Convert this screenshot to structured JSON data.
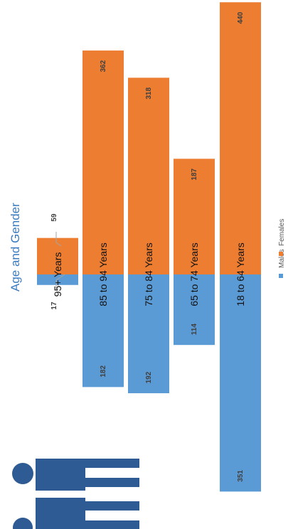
{
  "chart_data": {
    "type": "bar",
    "orientation": "rotated-90",
    "title": "Age and Gender",
    "categories": [
      "95+ Years",
      "85 to 94 Years",
      "75 to 84 Years",
      "65 to 74 Years",
      "18 to 64 Years"
    ],
    "series": [
      {
        "name": "Males",
        "values": [
          17,
          182,
          192,
          114,
          351
        ],
        "color": "#5b9bd5"
      },
      {
        "name": "Females",
        "values": [
          59,
          362,
          318,
          187,
          440
        ],
        "color": "#ed7d31"
      }
    ],
    "legend_placement": "right",
    "grid": false,
    "icon": "people-silhouette-icon",
    "icon_color": "#2e5b93"
  }
}
